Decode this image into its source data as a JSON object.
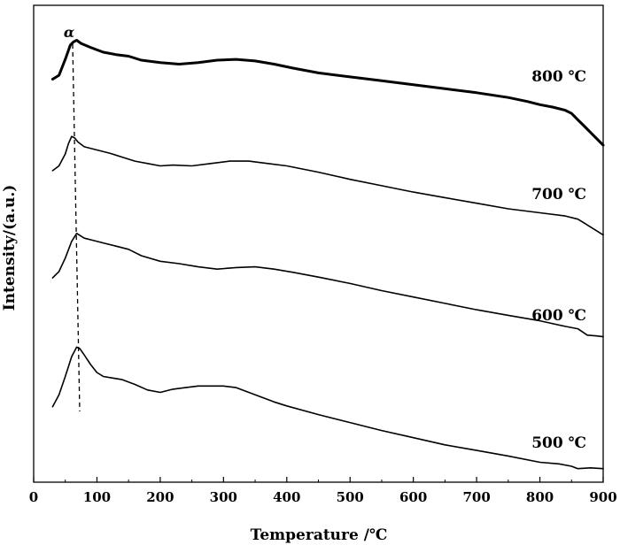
{
  "chart_data": {
    "type": "line",
    "xlabel": "Temperature /℃",
    "ylabel": "Intensity/(a.u.)",
    "xlim": [
      0,
      900
    ],
    "x_ticks": [
      "0",
      "100",
      "200",
      "300",
      "400",
      "500",
      "600",
      "700",
      "800",
      "900"
    ],
    "y_ticks": "none",
    "grid": false,
    "legend": "none",
    "annotations": [
      {
        "text": "α",
        "x": 63,
        "style": "dashed vertical line through desorption peaks"
      }
    ],
    "series": [
      {
        "name": "800 ℃",
        "emphasis": "bold",
        "x": [
          30,
          40,
          50,
          58,
          63,
          68,
          75,
          90,
          110,
          130,
          150,
          170,
          200,
          230,
          260,
          290,
          320,
          350,
          380,
          410,
          450,
          500,
          550,
          600,
          650,
          700,
          750,
          780,
          800,
          820,
          840,
          850,
          860,
          870,
          880,
          890,
          900
        ],
        "y": [
          507,
          512,
          532,
          550,
          554,
          556,
          552,
          547,
          541,
          538,
          536,
          531,
          528,
          526,
          528,
          531,
          532,
          530,
          526,
          521,
          515,
          510,
          505,
          500,
          495,
          490,
          484,
          479,
          475,
          472,
          468,
          464,
          456,
          448,
          440,
          432,
          424
        ]
      },
      {
        "name": "700 ℃",
        "emphasis": "normal",
        "x": [
          30,
          40,
          50,
          55,
          60,
          65,
          70,
          80,
          100,
          120,
          140,
          160,
          180,
          200,
          220,
          250,
          280,
          310,
          340,
          370,
          400,
          450,
          500,
          550,
          600,
          650,
          700,
          750,
          800,
          840,
          860,
          870,
          880,
          890,
          900
        ],
        "y": [
          392,
          398,
          413,
          426,
          435,
          433,
          428,
          422,
          418,
          414,
          409,
          404,
          401,
          398,
          399,
          398,
          401,
          404,
          404,
          401,
          398,
          390,
          381,
          373,
          365,
          358,
          351,
          344,
          339,
          335,
          331,
          326,
          321,
          316,
          311
        ]
      },
      {
        "name": "600 ℃",
        "emphasis": "normal",
        "x": [
          30,
          40,
          50,
          60,
          68,
          72,
          80,
          95,
          110,
          130,
          150,
          170,
          200,
          230,
          260,
          290,
          320,
          350,
          380,
          410,
          450,
          500,
          550,
          600,
          650,
          700,
          750,
          800,
          840,
          860,
          875,
          890,
          900
        ],
        "y": [
          257,
          265,
          282,
          303,
          313,
          311,
          307,
          304,
          301,
          297,
          293,
          285,
          278,
          275,
          271,
          268,
          270,
          271,
          268,
          264,
          258,
          250,
          241,
          233,
          225,
          217,
          210,
          203,
          196,
          193,
          185,
          184,
          183
        ]
      },
      {
        "name": "500 ℃",
        "emphasis": "normal",
        "x": [
          30,
          40,
          50,
          60,
          68,
          73,
          80,
          90,
          100,
          110,
          125,
          140,
          160,
          180,
          200,
          220,
          240,
          260,
          280,
          300,
          320,
          340,
          360,
          380,
          400,
          450,
          500,
          550,
          600,
          650,
          700,
          750,
          800,
          830,
          850,
          860,
          880,
          900
        ],
        "y": [
          95,
          110,
          133,
          158,
          170,
          168,
          160,
          148,
          138,
          133,
          131,
          129,
          123,
          116,
          113,
          117,
          119,
          121,
          121,
          121,
          119,
          113,
          107,
          101,
          96,
          85,
          75,
          65,
          56,
          47,
          40,
          33,
          25,
          23,
          20,
          17,
          18,
          17
        ]
      }
    ],
    "series_labels": [
      "800 ℃",
      "700 ℃",
      "600 ℃",
      "500 ℃"
    ]
  }
}
